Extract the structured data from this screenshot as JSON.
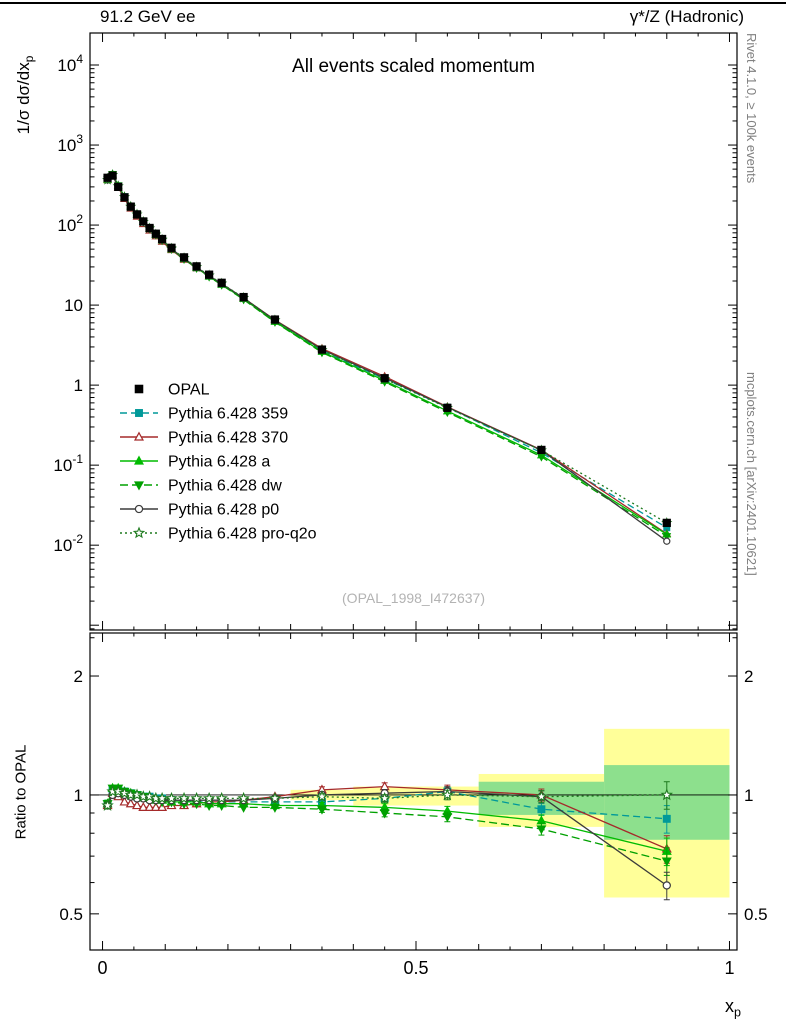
{
  "header": {
    "left": "91.2 GeV ee",
    "right": "γ*/Z (Hadronic)"
  },
  "labels": {
    "title": "All events scaled momentum",
    "ylabel_main_prefix": "1/σ  dσ/dx",
    "ylabel_main_sub": "p",
    "ylabel_ratio": "Ratio to OPAL",
    "xlabel_base": "x",
    "xlabel_sub": "p",
    "watermark": "(OPAL_1998_I472637)",
    "note_right_top": "Rivet 4.1.0, ≥ 100k events",
    "note_right_bottom": "mcplots.cern.ch [arXiv:2401.10621]"
  },
  "chart_data": {
    "type": "line",
    "scale": {
      "x": "linear",
      "y_main": "log",
      "y_ratio": "log"
    },
    "xlim": [
      -0.02,
      1.012
    ],
    "main_ylim_log": [
      -3.06,
      4.4
    ],
    "ratio_ylim": [
      0.405,
      2.57
    ],
    "x_ticks": {
      "values": [
        0,
        0.5,
        1
      ],
      "labels": [
        "0",
        "0.5",
        "1"
      ]
    },
    "main_yticks": [
      {
        "v": 10000,
        "t": "10",
        "e": "4"
      },
      {
        "v": 1000,
        "t": "10",
        "e": "3"
      },
      {
        "v": 100,
        "t": "10",
        "e": "2"
      },
      {
        "v": 10,
        "t": "10",
        "e": ""
      },
      {
        "v": 1,
        "t": "1",
        "e": ""
      },
      {
        "v": 0.1,
        "t": "10",
        "e": "-1"
      },
      {
        "v": 0.01,
        "t": "10",
        "e": "-2"
      }
    ],
    "ratio_yticks": [
      {
        "v": 2,
        "t": "2"
      },
      {
        "v": 1,
        "t": "1"
      },
      {
        "v": 0.5,
        "t": "0.5"
      }
    ],
    "x": [
      0.008,
      0.016,
      0.025,
      0.035,
      0.045,
      0.055,
      0.065,
      0.075,
      0.085,
      0.095,
      0.11,
      0.13,
      0.15,
      0.17,
      0.19,
      0.225,
      0.275,
      0.35,
      0.45,
      0.55,
      0.7,
      0.9
    ],
    "opal": {
      "label": "OPAL",
      "color": "#000000",
      "marker": "square",
      "y": [
        390,
        415,
        300,
        222,
        170,
        136,
        111,
        92,
        78,
        67,
        52,
        39.5,
        30.5,
        24,
        19,
        12.6,
        6.6,
        2.78,
        1.22,
        0.52,
        0.155,
        0.019
      ],
      "err_rel": [
        0.02,
        0.015,
        0.012,
        0.01,
        0.01,
        0.01,
        0.01,
        0.01,
        0.01,
        0.01,
        0.01,
        0.01,
        0.011,
        0.012,
        0.013,
        0.014,
        0.016,
        0.018,
        0.022,
        0.028,
        0.035,
        0.08
      ]
    },
    "series": [
      {
        "id": "359",
        "label": "Pythia 6.428 359",
        "color": "#009999",
        "dash": "7,4",
        "marker": "square",
        "filled": true,
        "ratio": [
          0.95,
          1.03,
          1.03,
          1.02,
          1.01,
          1.0,
          0.99,
          0.99,
          0.98,
          0.98,
          0.97,
          0.97,
          0.96,
          0.96,
          0.96,
          0.96,
          0.96,
          0.96,
          0.98,
          1.02,
          0.92,
          0.87
        ]
      },
      {
        "id": "370",
        "label": "Pythia 6.428 370",
        "color": "#a52a2a",
        "dash": "",
        "marker": "triangle-up",
        "filled": false,
        "ratio": [
          0.94,
          1.01,
          0.99,
          0.96,
          0.95,
          0.94,
          0.93,
          0.93,
          0.93,
          0.93,
          0.94,
          0.94,
          0.95,
          0.96,
          0.96,
          0.97,
          0.99,
          1.03,
          1.05,
          1.03,
          1.0,
          0.73
        ]
      },
      {
        "id": "a",
        "label": "Pythia 6.428 a",
        "color": "#00bb00",
        "dash": "",
        "marker": "triangle-up",
        "filled": true,
        "ratio": [
          0.95,
          1.04,
          1.04,
          1.02,
          1.01,
          1.0,
          0.99,
          0.98,
          0.97,
          0.97,
          0.96,
          0.96,
          0.96,
          0.95,
          0.95,
          0.95,
          0.94,
          0.94,
          0.93,
          0.91,
          0.86,
          0.72
        ]
      },
      {
        "id": "dw",
        "label": "Pythia 6.428 dw",
        "color": "#00a000",
        "dash": "8,4",
        "marker": "triangle-down",
        "filled": true,
        "ratio": [
          0.95,
          1.04,
          1.04,
          1.02,
          1.01,
          1.0,
          0.99,
          0.98,
          0.97,
          0.96,
          0.96,
          0.95,
          0.95,
          0.94,
          0.94,
          0.93,
          0.93,
          0.92,
          0.9,
          0.88,
          0.82,
          0.68
        ]
      },
      {
        "id": "p0",
        "label": "Pythia 6.428 p0",
        "color": "#3c3c3c",
        "dash": "",
        "marker": "circle",
        "filled": false,
        "ratio": [
          0.94,
          1.0,
          1.01,
          1.0,
          0.99,
          0.98,
          0.98,
          0.97,
          0.97,
          0.97,
          0.97,
          0.97,
          0.97,
          0.97,
          0.97,
          0.97,
          0.98,
          1.0,
          1.01,
          1.02,
          0.99,
          0.59
        ]
      },
      {
        "id": "pro-q2o",
        "label": "Pythia 6.428 pro-q2o",
        "color": "#1e7a1e",
        "dash": "2,3",
        "marker": "star",
        "filled": false,
        "ratio": [
          0.94,
          1.02,
          1.02,
          1.01,
          1.0,
          1.0,
          0.99,
          0.99,
          0.98,
          0.98,
          0.98,
          0.98,
          0.98,
          0.98,
          0.98,
          0.98,
          0.98,
          0.99,
          0.98,
          1.0,
          0.99,
          1.0
        ]
      }
    ],
    "bands": {
      "yellow_color": "#ffff99",
      "green_color": "#8de08d",
      "yellow": [
        [
          0.3,
          0.4,
          0.97,
          1.03
        ],
        [
          0.4,
          0.6,
          0.94,
          1.05
        ],
        [
          0.6,
          0.8,
          0.83,
          1.13
        ],
        [
          0.8,
          1.0,
          0.55,
          1.47
        ]
      ],
      "green": [
        [
          0.6,
          0.8,
          0.89,
          1.08
        ],
        [
          0.8,
          1.0,
          0.77,
          1.19
        ]
      ]
    },
    "ratio_reference": 1
  }
}
